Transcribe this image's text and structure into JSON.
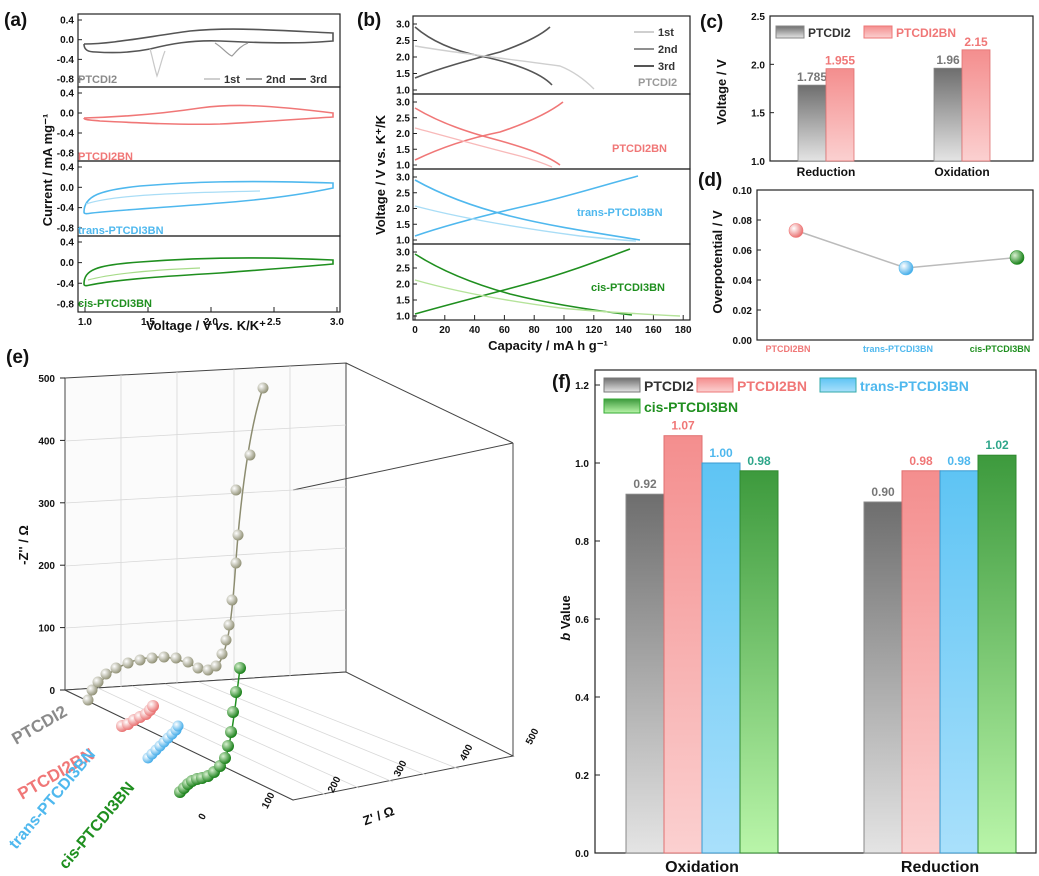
{
  "colors": {
    "PTCDI2": "#7a7a7a",
    "PTCDI2BN": "#f07777",
    "trans-PTCDI3BN": "#4fb8ee",
    "cis-PTCDI3BN": "#1f8f1f",
    "eis_ptcdi2": "#9a9a80"
  },
  "panels": {
    "a": {
      "letter": "(a)",
      "ylabel": "Current / mA mg⁻¹",
      "xlabel_pre": "Voltage / V ",
      "xlabel_it": "vs.",
      "xlabel_post": " K/K⁺",
      "legend": [
        "1st",
        "2nd",
        "3rd"
      ],
      "labels": [
        "PTCDI2",
        "PTCDI2BN",
        "trans-PTCDI3BN",
        "cis-PTCDI3BN"
      ],
      "yticks": [
        "0.4",
        "0.0",
        "-0.4",
        "-0.8"
      ],
      "xticks": [
        "1.0",
        "1.5",
        "2.0",
        "2.5",
        "3.0"
      ]
    },
    "b": {
      "letter": "(b)",
      "ylabel": "Voltage / V vs. K⁺/K",
      "xlabel": "Capacity / mA h g⁻¹",
      "legend": [
        "1st",
        "2nd",
        "3rd"
      ],
      "labels": [
        "PTCDI2",
        "PTCDI2BN",
        "trans-PTCDI3BN",
        "cis-PTCDI3BN"
      ],
      "yticks": [
        "3.0",
        "2.5",
        "2.0",
        "1.5",
        "1.0"
      ],
      "xticks": [
        "0",
        "20",
        "40",
        "60",
        "80",
        "100",
        "120",
        "140",
        "160",
        "180"
      ]
    },
    "e": {
      "letter": "(e)",
      "zlabel": "-Z'' / Ω",
      "xlabel": "Z' / Ω",
      "zticks": [
        "0",
        "100",
        "200",
        "300",
        "400",
        "500"
      ],
      "xticks": [
        "0",
        "100",
        "200",
        "300",
        "400",
        "500"
      ],
      "labels": [
        "PTCDI2",
        "PTCDI2BN",
        "trans-PTCDI3BN",
        "cis-PTCDI3BN"
      ]
    }
  },
  "chart_data": [
    {
      "panel": "c",
      "type": "bar",
      "letter": "(c)",
      "categories": [
        "Reduction",
        "Oxidation"
      ],
      "series": [
        {
          "name": "PTCDI2",
          "values": [
            1.785,
            1.96
          ],
          "labels": [
            "1.785",
            "1.96"
          ]
        },
        {
          "name": "PTCDI2BN",
          "values": [
            1.955,
            2.15
          ],
          "labels": [
            "1.955",
            "2.15"
          ]
        }
      ],
      "ylabel": "Voltage / V",
      "ylim": [
        1.0,
        2.5
      ],
      "yticks": [
        "1.0",
        "1.5",
        "2.0",
        "2.5"
      ]
    },
    {
      "panel": "d",
      "type": "scatter",
      "letter": "(d)",
      "categories": [
        "PTCDI2BN",
        "trans-PTCDI3BN",
        "cis-PTCDI3BN"
      ],
      "values": [
        0.073,
        0.048,
        0.055
      ],
      "ylabel": "Overpotential / V",
      "ylim": [
        0.0,
        0.1
      ],
      "yticks": [
        "0.00",
        "0.02",
        "0.04",
        "0.06",
        "0.08",
        "0.10"
      ]
    },
    {
      "panel": "f",
      "type": "bar",
      "letter": "(f)",
      "categories": [
        "Oxidation",
        "Reduction"
      ],
      "series": [
        {
          "name": "PTCDI2",
          "values": [
            0.92,
            0.9
          ],
          "labels": [
            "0.92",
            "0.90"
          ]
        },
        {
          "name": "PTCDI2BN",
          "values": [
            1.07,
            0.98
          ],
          "labels": [
            "1.07",
            "0.98"
          ]
        },
        {
          "name": "trans-PTCDI3BN",
          "values": [
            1.0,
            0.98
          ],
          "labels": [
            "1.00",
            "0.98"
          ]
        },
        {
          "name": "cis-PTCDI3BN",
          "values": [
            0.98,
            1.02
          ],
          "labels": [
            "0.98",
            "1.02"
          ]
        }
      ],
      "ylabel_it": "b",
      "ylabel": " Value",
      "ylim": [
        0.0,
        1.2
      ],
      "yticks": [
        "0.0",
        "0.2",
        "0.4",
        "0.6",
        "0.8",
        "1.0",
        "1.2"
      ]
    }
  ]
}
